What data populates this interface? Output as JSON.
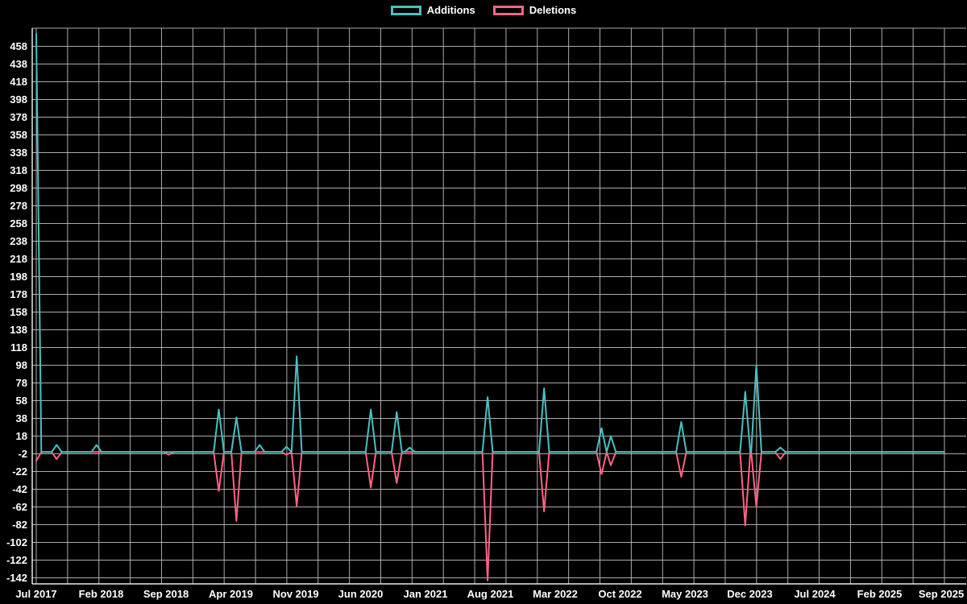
{
  "colors": {
    "background": "#000000",
    "text": "#ffffff",
    "grid": "#c9c9c9",
    "axis": "#e8e8e8",
    "additions": "#4bc0c0",
    "deletions": "#ff6384"
  },
  "legend": {
    "items": [
      {
        "label": "Additions",
        "color": "#4bc0c0"
      },
      {
        "label": "Deletions",
        "color": "#ff6384"
      }
    ]
  },
  "chart_data": {
    "type": "line",
    "title": "",
    "xlabel": "",
    "ylabel": "",
    "grid": true,
    "legend_position": "top-center",
    "x_axis": {
      "start_label": "Jul 2017",
      "end_label": "Sep 2025",
      "months_span": 98,
      "tick_interval_months": 7,
      "tick_labels": [
        "Jul 2017",
        "Feb 2018",
        "Sep 2018",
        "Apr 2019",
        "Nov 2019",
        "Jun 2020",
        "Jan 2021",
        "Aug 2021",
        "Mar 2022",
        "Oct 2022",
        "May 2023",
        "Dec 2023",
        "Jul 2024",
        "Feb 2025",
        "Sep 2025"
      ]
    },
    "y_axis": {
      "min": -150,
      "max": 478,
      "tick_step": 20,
      "tick_labels": [
        458,
        438,
        418,
        398,
        378,
        358,
        338,
        318,
        298,
        278,
        258,
        238,
        218,
        198,
        178,
        158,
        138,
        118,
        98,
        78,
        58,
        38,
        18,
        -2,
        -22,
        -42,
        -62,
        -82,
        -102,
        -122,
        -142
      ]
    },
    "baseline_value": 0,
    "vertical_gridline_count": 30,
    "series": [
      {
        "name": "Additions",
        "color": "#4bc0c0",
        "spikes": [
          {
            "m": 0,
            "v": 472
          },
          {
            "m": 2.2,
            "v": 8
          },
          {
            "m": 6.5,
            "v": 8
          },
          {
            "m": 19.7,
            "v": 48
          },
          {
            "m": 21.6,
            "v": 39
          },
          {
            "m": 24.1,
            "v": 8
          },
          {
            "m": 27,
            "v": 6
          },
          {
            "m": 28.1,
            "v": 108
          },
          {
            "m": 36.1,
            "v": 48
          },
          {
            "m": 38.9,
            "v": 45
          },
          {
            "m": 40.3,
            "v": 5
          },
          {
            "m": 48.7,
            "v": 62
          },
          {
            "m": 54.8,
            "v": 72
          },
          {
            "m": 61,
            "v": 27
          },
          {
            "m": 62,
            "v": 18
          },
          {
            "m": 69.6,
            "v": 34
          },
          {
            "m": 76.5,
            "v": 68
          },
          {
            "m": 77.7,
            "v": 98
          },
          {
            "m": 80.3,
            "v": 5
          }
        ]
      },
      {
        "name": "Deletions",
        "color": "#ff6384",
        "spikes": [
          {
            "m": 0,
            "v": -10
          },
          {
            "m": 2.2,
            "v": -8
          },
          {
            "m": 14.3,
            "v": -3
          },
          {
            "m": 19.7,
            "v": -44
          },
          {
            "m": 21.6,
            "v": -78
          },
          {
            "m": 27,
            "v": -3
          },
          {
            "m": 28.1,
            "v": -61
          },
          {
            "m": 36.1,
            "v": -40
          },
          {
            "m": 38.9,
            "v": -35
          },
          {
            "m": 48.7,
            "v": -145
          },
          {
            "m": 54.8,
            "v": -67
          },
          {
            "m": 61,
            "v": -25
          },
          {
            "m": 62,
            "v": -15
          },
          {
            "m": 69.6,
            "v": -28
          },
          {
            "m": 76.5,
            "v": -83
          },
          {
            "m": 77.7,
            "v": -62
          },
          {
            "m": 80.3,
            "v": -8
          }
        ]
      }
    ]
  }
}
